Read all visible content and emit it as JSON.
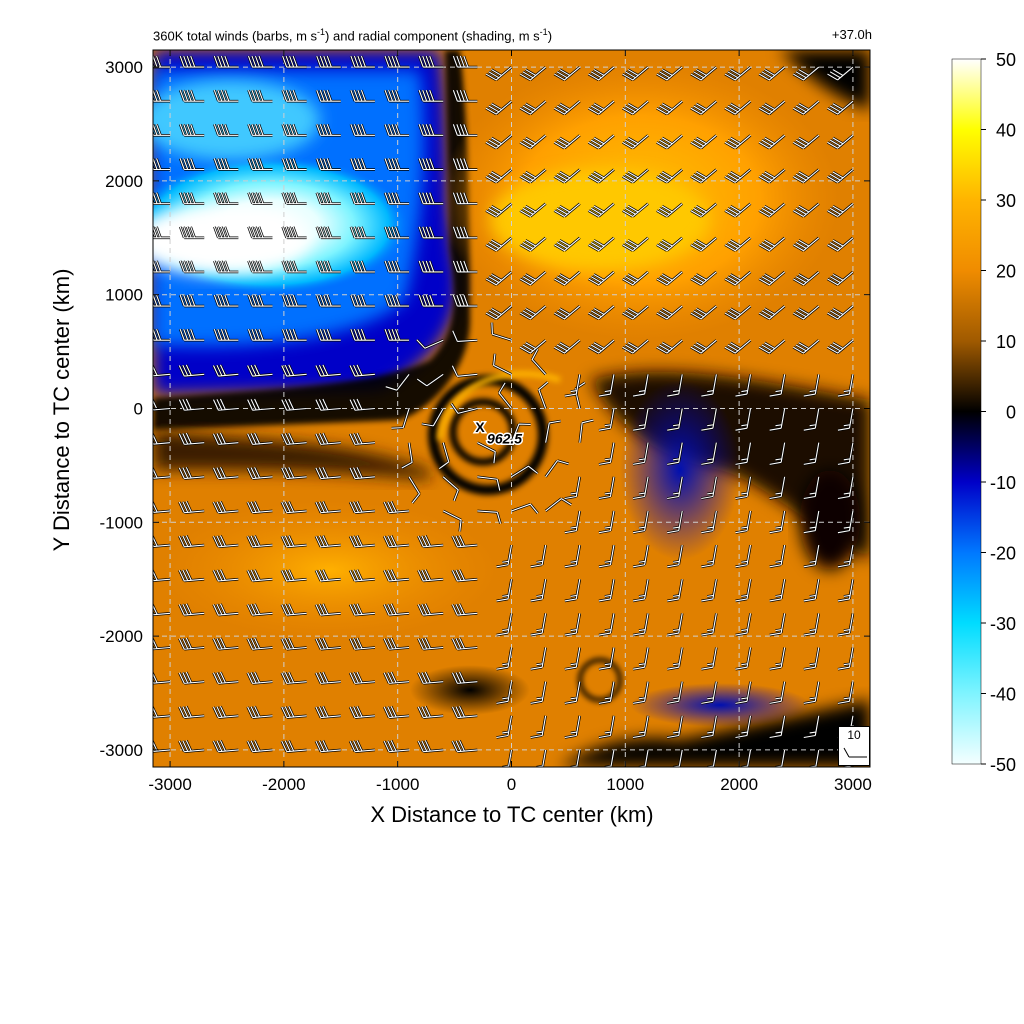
{
  "chart_data": {
    "type": "heatmap",
    "title": "360K total winds (barbs, m s-1) and radial component (shading, m s-1)",
    "title_parts": {
      "pre": "360K total winds (barbs, m s",
      "sup1": "-1",
      "mid": ") and radial component (shading, m s",
      "sup2": "-1",
      "post": ")"
    },
    "time_label": "+37.0h",
    "xlabel": "X Distance to TC center (km)",
    "ylabel": "Y Distance to TC center (km)",
    "xlim": [
      -3150,
      3150
    ],
    "ylim": [
      -3150,
      3150
    ],
    "xticks": [
      -3000,
      -2000,
      -1000,
      0,
      1000,
      2000,
      3000
    ],
    "yticks": [
      -3000,
      -2000,
      -1000,
      0,
      1000,
      2000,
      3000
    ],
    "grid": true,
    "grid_style": "dashed",
    "colorbar": {
      "position": "right",
      "ticks": [
        50,
        40,
        30,
        20,
        10,
        0,
        -10,
        -20,
        -30,
        -40,
        -50
      ],
      "range": [
        -50,
        50
      ],
      "stops": [
        {
          "value": -50,
          "color": "#f4ffff"
        },
        {
          "value": -40,
          "color": "#7ff4ff"
        },
        {
          "value": -30,
          "color": "#00dcff"
        },
        {
          "value": -20,
          "color": "#0078ff"
        },
        {
          "value": -10,
          "color": "#0000c8"
        },
        {
          "value": 0,
          "color": "#000000"
        },
        {
          "value": 10,
          "color": "#a05a00"
        },
        {
          "value": 20,
          "color": "#f08c00"
        },
        {
          "value": 30,
          "color": "#ffb400"
        },
        {
          "value": 40,
          "color": "#ffff00"
        },
        {
          "value": 50,
          "color": "#ffffff"
        }
      ]
    },
    "center_marker": {
      "symbol": "X",
      "x": -250,
      "y": -200,
      "label": "962.5"
    },
    "reference_barb": {
      "value": "10",
      "speed": 10
    },
    "shading_features": [
      {
        "name": "outflow-jet-northwest",
        "x": -2200,
        "y": 1500,
        "value": -48
      },
      {
        "name": "negative-region-northwest",
        "x": -1800,
        "y": 1700,
        "value": -25
      },
      {
        "name": "positive-region-northeast",
        "x": 1200,
        "y": 1900,
        "value": 25
      },
      {
        "name": "positive-region-south",
        "x": -1600,
        "y": -1300,
        "value": 22
      },
      {
        "name": "dark-band-southeast",
        "x": 1500,
        "y": -700,
        "value": 2
      },
      {
        "name": "negative-patch-south",
        "x": 1500,
        "y": -2700,
        "value": -8
      }
    ],
    "wind_field_model": {
      "description": "barb grid every 300 km",
      "regions": [
        {
          "name": "northwest-westerlies",
          "direction_from_deg": 270,
          "speed": 40
        },
        {
          "name": "northeast-southwesterlies",
          "direction_from_deg": 230,
          "speed": 30
        },
        {
          "name": "southwest-westerlies",
          "direction_from_deg": 265,
          "speed": 30
        },
        {
          "name": "southeast-southerlies",
          "direction_from_deg": 190,
          "speed": 15
        },
        {
          "name": "cyclonic-core",
          "direction_from_deg": 0,
          "speed": 12
        }
      ]
    },
    "barb_spacing_km": 300,
    "color_accent": "#f08c00"
  }
}
